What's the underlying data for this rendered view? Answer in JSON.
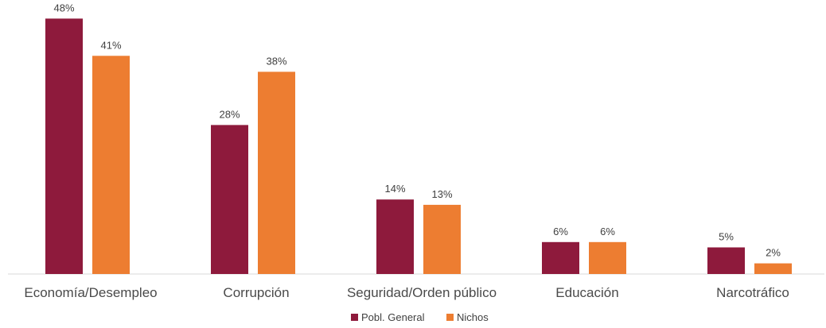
{
  "chart_data": {
    "type": "bar",
    "categories": [
      "Economía/Desempleo",
      "Corrupción",
      "Seguridad/Orden público",
      "Educación",
      "Narcotráfico"
    ],
    "series": [
      {
        "name": "Pobl. General",
        "values": [
          48,
          28,
          14,
          6,
          5
        ],
        "labels": [
          "48%",
          "28%",
          "14%",
          "6%",
          "5%"
        ],
        "color": "#8e1a3c"
      },
      {
        "name": "Nichos",
        "values": [
          41,
          38,
          13,
          6,
          2
        ],
        "labels": [
          "41%",
          "38%",
          "13%",
          "6%",
          "2%"
        ],
        "color": "#ed7d31"
      }
    ],
    "unit": "%",
    "ylim": [
      0,
      50
    ],
    "grid": false,
    "legend_position": "bottom-center",
    "axis_color": "#d9d9d9"
  }
}
